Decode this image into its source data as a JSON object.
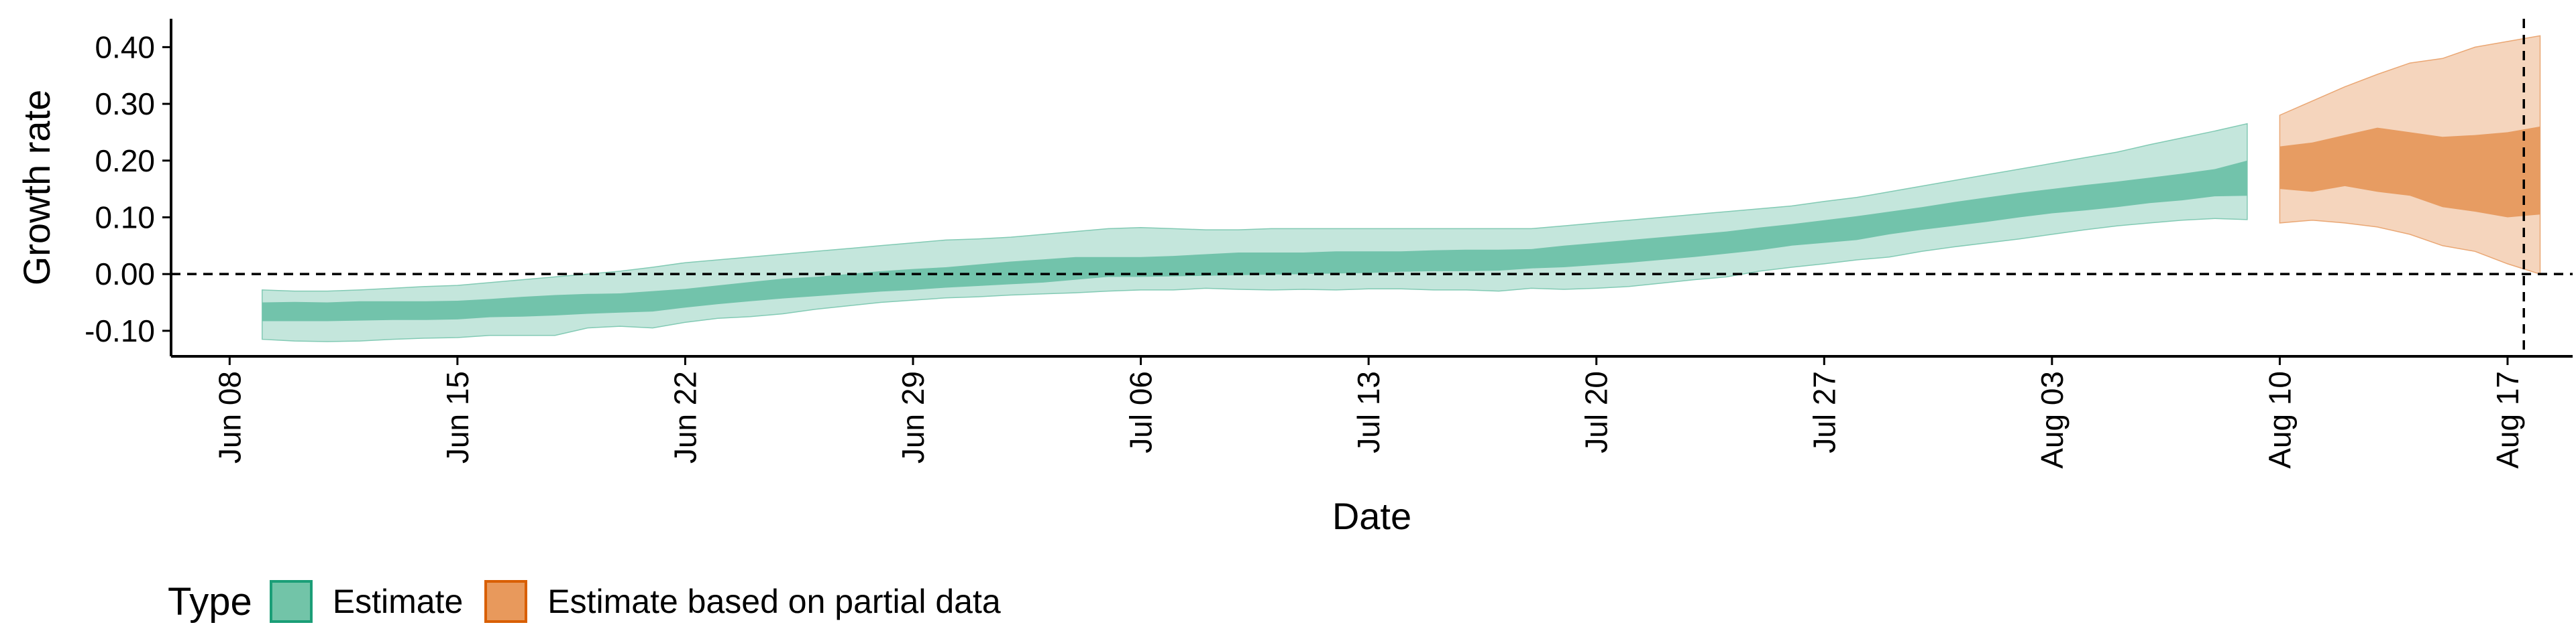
{
  "chart_data": {
    "type": "area",
    "title": "",
    "xlabel": "Date",
    "ylabel": "Growth rate",
    "xlim": [
      -1.8,
      72
    ],
    "ylim": [
      -0.145,
      0.45
    ],
    "x_ticks": [
      {
        "day": 0,
        "label": "Jun 08"
      },
      {
        "day": 7,
        "label": "Jun 15"
      },
      {
        "day": 14,
        "label": "Jun 22"
      },
      {
        "day": 21,
        "label": "Jun 29"
      },
      {
        "day": 28,
        "label": "Jul 06"
      },
      {
        "day": 35,
        "label": "Jul 13"
      },
      {
        "day": 42,
        "label": "Jul 20"
      },
      {
        "day": 49,
        "label": "Jul 27"
      },
      {
        "day": 56,
        "label": "Aug 03"
      },
      {
        "day": 63,
        "label": "Aug 10"
      },
      {
        "day": 70,
        "label": "Aug 17"
      }
    ],
    "y_ticks": [
      {
        "value": -0.1,
        "label": "-0.10"
      },
      {
        "value": 0.0,
        "label": "0.00"
      },
      {
        "value": 0.1,
        "label": "0.10"
      },
      {
        "value": 0.2,
        "label": "0.20"
      },
      {
        "value": 0.3,
        "label": "0.30"
      },
      {
        "value": 0.4,
        "label": "0.40"
      }
    ],
    "hline_y": 0.0,
    "vline_day": 70.5,
    "series": [
      {
        "name": "Estimate",
        "color": "#1b9e77",
        "x": [
          1,
          2,
          3,
          4,
          5,
          6,
          7,
          8,
          9,
          10,
          11,
          12,
          13,
          14,
          15,
          16,
          17,
          18,
          19,
          20,
          21,
          22,
          23,
          24,
          25,
          26,
          27,
          28,
          29,
          30,
          31,
          32,
          33,
          34,
          35,
          36,
          37,
          38,
          39,
          40,
          41,
          42,
          43,
          44,
          45,
          46,
          47,
          48,
          49,
          50,
          51,
          52,
          53,
          54,
          55,
          56,
          57,
          58,
          59,
          60,
          61,
          62
        ],
        "lower90": [
          -0.115,
          -0.118,
          -0.119,
          -0.118,
          -0.115,
          -0.113,
          -0.112,
          -0.108,
          -0.108,
          -0.108,
          -0.095,
          -0.092,
          -0.095,
          -0.085,
          -0.078,
          -0.075,
          -0.07,
          -0.062,
          -0.056,
          -0.05,
          -0.046,
          -0.042,
          -0.04,
          -0.037,
          -0.035,
          -0.033,
          -0.03,
          -0.028,
          -0.028,
          -0.025,
          -0.027,
          -0.028,
          -0.027,
          -0.028,
          -0.026,
          -0.026,
          -0.028,
          -0.028,
          -0.03,
          -0.025,
          -0.027,
          -0.025,
          -0.022,
          -0.016,
          -0.01,
          -0.005,
          0.005,
          0.012,
          0.018,
          0.025,
          0.03,
          0.04,
          0.048,
          0.055,
          0.062,
          0.07,
          0.078,
          0.085,
          0.09,
          0.095,
          0.098,
          0.096
        ],
        "lower50": [
          -0.083,
          -0.083,
          -0.083,
          -0.082,
          -0.081,
          -0.081,
          -0.08,
          -0.076,
          -0.075,
          -0.073,
          -0.07,
          -0.068,
          -0.066,
          -0.059,
          -0.053,
          -0.048,
          -0.043,
          -0.039,
          -0.035,
          -0.031,
          -0.028,
          -0.024,
          -0.021,
          -0.018,
          -0.015,
          -0.01,
          -0.005,
          -0.005,
          -0.004,
          -0.003,
          -0.002,
          -0.001,
          0.0,
          0.001,
          0.002,
          0.004,
          0.005,
          0.005,
          0.006,
          0.01,
          0.012,
          0.016,
          0.02,
          0.025,
          0.03,
          0.036,
          0.042,
          0.05,
          0.055,
          0.06,
          0.07,
          0.078,
          0.085,
          0.092,
          0.1,
          0.107,
          0.112,
          0.118,
          0.125,
          0.13,
          0.137,
          0.138
        ],
        "upper50": [
          -0.05,
          -0.049,
          -0.05,
          -0.048,
          -0.048,
          -0.048,
          -0.047,
          -0.044,
          -0.04,
          -0.037,
          -0.035,
          -0.034,
          -0.03,
          -0.026,
          -0.02,
          -0.014,
          -0.008,
          -0.005,
          0.0,
          0.005,
          0.009,
          0.012,
          0.017,
          0.022,
          0.026,
          0.03,
          0.03,
          0.03,
          0.032,
          0.035,
          0.038,
          0.038,
          0.038,
          0.04,
          0.04,
          0.04,
          0.042,
          0.043,
          0.043,
          0.044,
          0.05,
          0.055,
          0.06,
          0.065,
          0.07,
          0.075,
          0.082,
          0.088,
          0.095,
          0.102,
          0.11,
          0.118,
          0.127,
          0.135,
          0.143,
          0.15,
          0.157,
          0.163,
          0.17,
          0.177,
          0.185,
          0.2
        ],
        "upper90": [
          -0.028,
          -0.03,
          -0.03,
          -0.028,
          -0.025,
          -0.022,
          -0.02,
          -0.015,
          -0.01,
          -0.005,
          0.0,
          0.005,
          0.012,
          0.02,
          0.025,
          0.03,
          0.035,
          0.04,
          0.045,
          0.05,
          0.055,
          0.06,
          0.062,
          0.065,
          0.07,
          0.075,
          0.08,
          0.082,
          0.08,
          0.078,
          0.078,
          0.08,
          0.08,
          0.08,
          0.08,
          0.08,
          0.08,
          0.08,
          0.08,
          0.08,
          0.085,
          0.09,
          0.095,
          0.1,
          0.105,
          0.11,
          0.115,
          0.12,
          0.128,
          0.135,
          0.145,
          0.155,
          0.165,
          0.175,
          0.185,
          0.195,
          0.205,
          0.215,
          0.228,
          0.24,
          0.252,
          0.265
        ]
      },
      {
        "name": "Estimate based on partial data",
        "color": "#d95f02",
        "x": [
          63,
          64,
          65,
          66,
          67,
          68,
          69,
          70,
          71
        ],
        "lower90": [
          0.09,
          0.095,
          0.09,
          0.083,
          0.07,
          0.05,
          0.04,
          0.018,
          0.0
        ],
        "lower50": [
          0.15,
          0.145,
          0.155,
          0.145,
          0.138,
          0.118,
          0.11,
          0.1,
          0.105
        ],
        "upper50": [
          0.225,
          0.232,
          0.245,
          0.258,
          0.25,
          0.242,
          0.245,
          0.25,
          0.26
        ],
        "upper90": [
          0.28,
          0.305,
          0.33,
          0.352,
          0.372,
          0.38,
          0.4,
          0.41,
          0.42
        ]
      }
    ],
    "legend": {
      "title": "Type",
      "items": [
        {
          "label": "Estimate",
          "fill": "#72c4a8",
          "border": "#1b9e77"
        },
        {
          "label": "Estimate based on partial data",
          "fill": "#e8995c",
          "border": "#d95f02"
        }
      ],
      "position": "bottom-left"
    }
  }
}
